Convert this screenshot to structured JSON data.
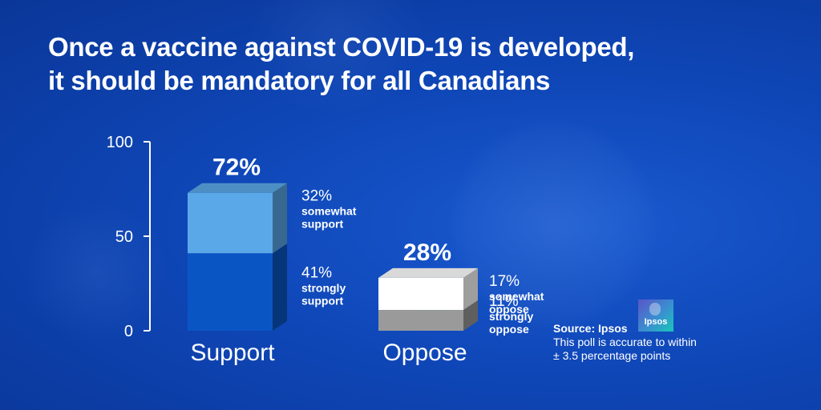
{
  "title": {
    "line1": "Once a vaccine against COVID-19 is developed,",
    "line2": "it should be mandatory for all Canadians"
  },
  "chart_data": {
    "type": "bar",
    "stacked": true,
    "categories": [
      "Support",
      "Oppose"
    ],
    "totals": [
      "72%",
      "28%"
    ],
    "yticks": [
      "0",
      "50",
      "100"
    ],
    "ylim": [
      0,
      100
    ],
    "series": [
      {
        "values": [
          41,
          11
        ],
        "labels": [
          [
            "41%",
            "strongly",
            "support"
          ],
          [
            "11%",
            "strongly",
            "oppose"
          ]
        ],
        "colors": [
          "#0a55c4",
          "#9a9a9a"
        ]
      },
      {
        "values": [
          32,
          17
        ],
        "labels": [
          [
            "32%",
            "somewhat",
            "support"
          ],
          [
            "17%",
            "somewhat",
            "oppose"
          ]
        ],
        "colors": [
          "#5aa8e8",
          "#ffffff"
        ]
      }
    ]
  },
  "source": {
    "label": "Source: Ipsos",
    "note1": "This poll is accurate to within",
    "note2": "± 3.5 percentage points"
  },
  "logo": {
    "text": "Ipsos"
  }
}
